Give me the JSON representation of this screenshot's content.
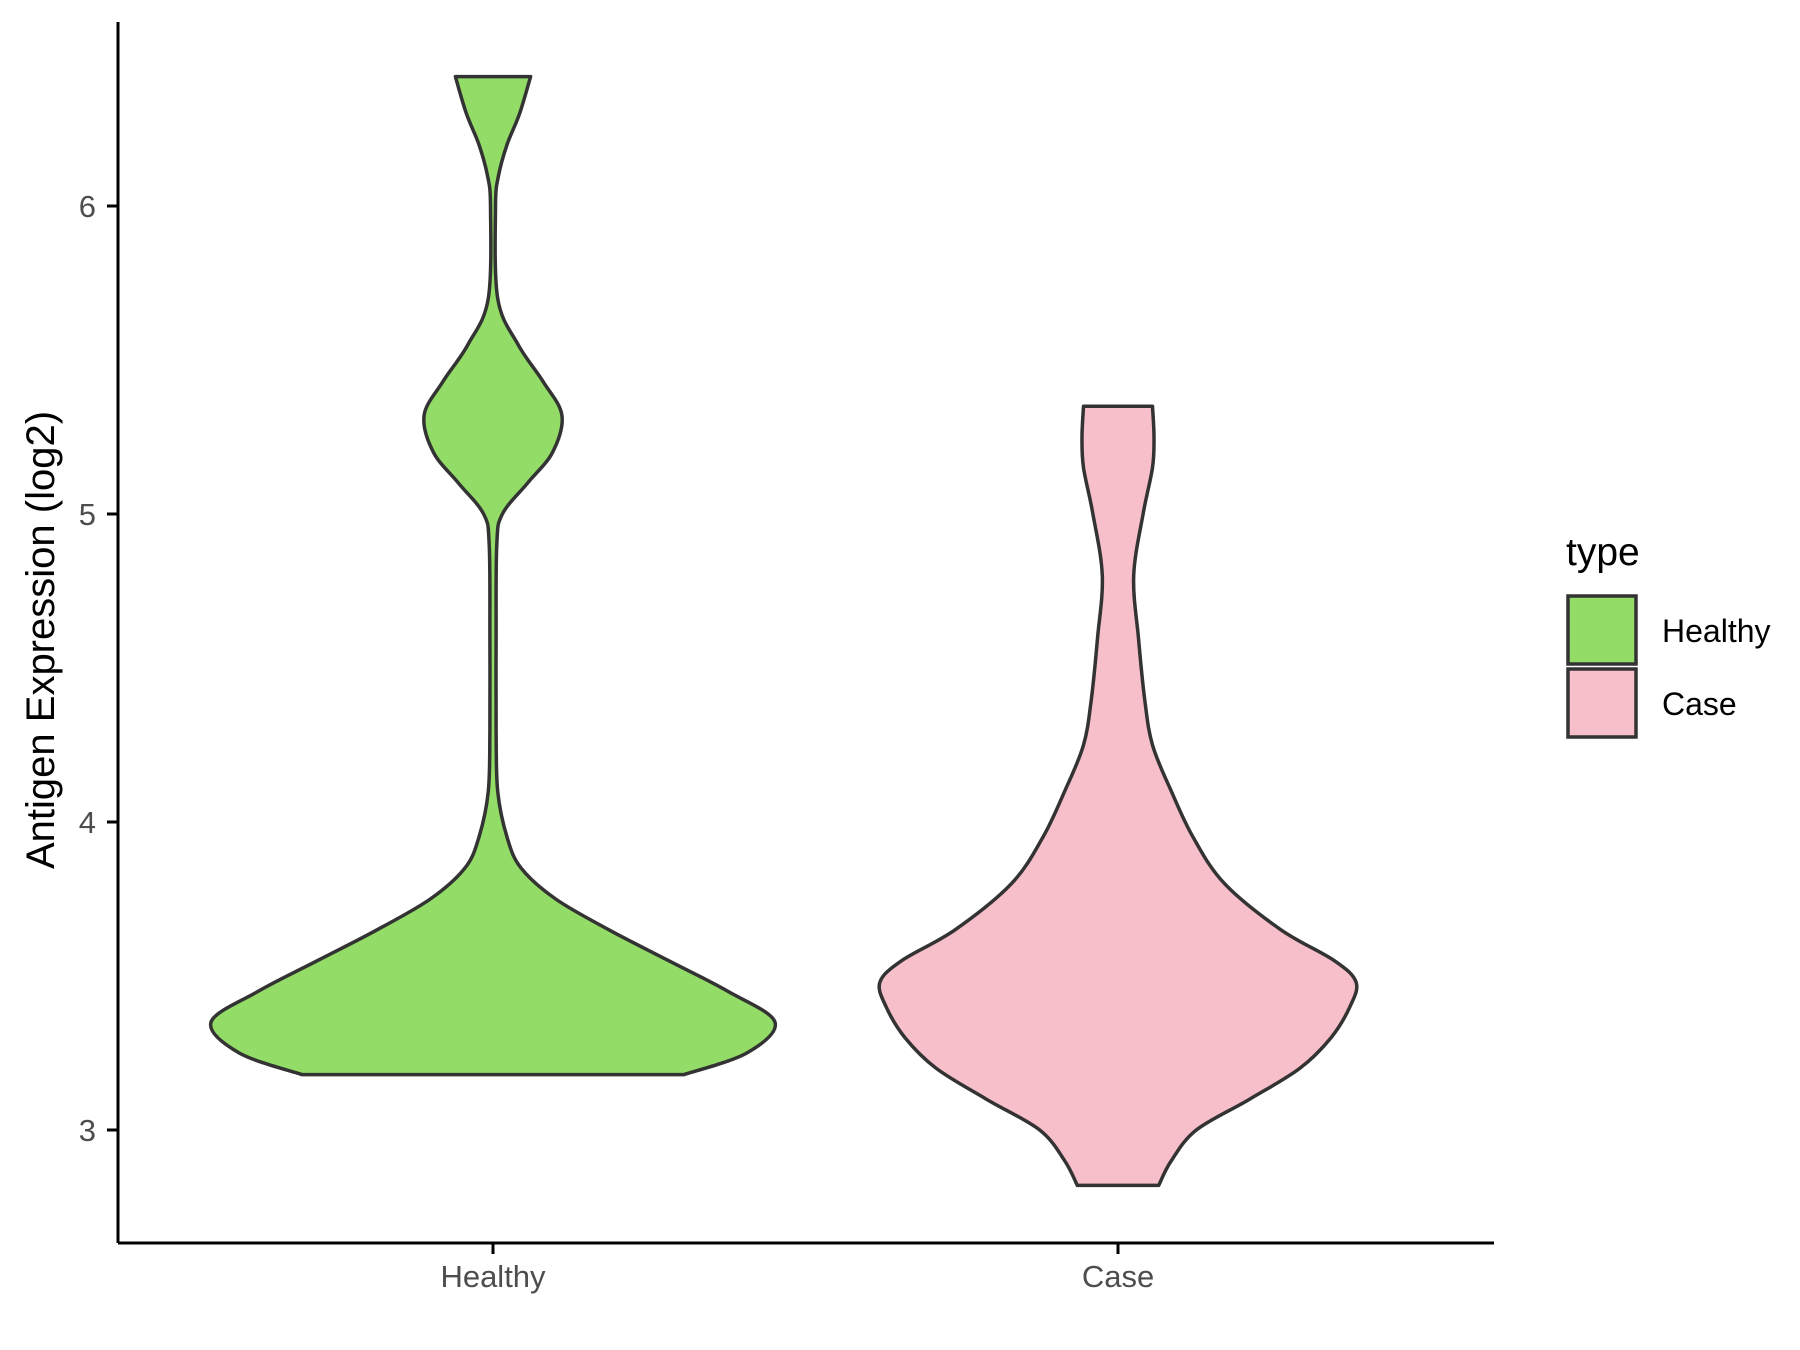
{
  "chart_data": {
    "type": "violin",
    "title": "",
    "xlabel": "",
    "ylabel": "Antigen Expression (log2)",
    "categories": [
      "Healthy",
      "Case"
    ],
    "ylim": [
      2.65,
      6.6
    ],
    "yticks": [
      3,
      4,
      5,
      6
    ],
    "grid": false,
    "legend": {
      "title": "type",
      "position": "right",
      "entries": [
        {
          "label": "Healthy",
          "color": "#92DC67"
        },
        {
          "label": "Case",
          "color": "#F7BFCA"
        }
      ]
    },
    "series": [
      {
        "name": "Healthy",
        "color": "#92DC67",
        "range": [
          3.18,
          6.42
        ],
        "density": [
          [
            3.18,
            0.61
          ],
          [
            3.25,
            0.81
          ],
          [
            3.35,
            0.9
          ],
          [
            3.45,
            0.75
          ],
          [
            3.55,
            0.56
          ],
          [
            3.65,
            0.37
          ],
          [
            3.75,
            0.2
          ],
          [
            3.85,
            0.09
          ],
          [
            3.95,
            0.045
          ],
          [
            4.1,
            0.015
          ],
          [
            4.3,
            0.01
          ],
          [
            4.6,
            0.01
          ],
          [
            4.9,
            0.012
          ],
          [
            5.0,
            0.03
          ],
          [
            5.1,
            0.11
          ],
          [
            5.2,
            0.19
          ],
          [
            5.32,
            0.22
          ],
          [
            5.43,
            0.16
          ],
          [
            5.55,
            0.08
          ],
          [
            5.7,
            0.015
          ],
          [
            6.0,
            0.008
          ],
          [
            6.1,
            0.018
          ],
          [
            6.2,
            0.045
          ],
          [
            6.3,
            0.085
          ],
          [
            6.42,
            0.12
          ]
        ]
      },
      {
        "name": "Case",
        "color": "#F7BFCA",
        "range": [
          2.82,
          5.35
        ],
        "density": [
          [
            2.82,
            0.13
          ],
          [
            2.9,
            0.17
          ],
          [
            3.0,
            0.25
          ],
          [
            3.1,
            0.42
          ],
          [
            3.2,
            0.58
          ],
          [
            3.3,
            0.68
          ],
          [
            3.4,
            0.74
          ],
          [
            3.48,
            0.76
          ],
          [
            3.55,
            0.69
          ],
          [
            3.65,
            0.52
          ],
          [
            3.8,
            0.34
          ],
          [
            3.95,
            0.24
          ],
          [
            4.1,
            0.17
          ],
          [
            4.25,
            0.11
          ],
          [
            4.4,
            0.085
          ],
          [
            4.6,
            0.065
          ],
          [
            4.8,
            0.05
          ],
          [
            5.0,
            0.08
          ],
          [
            5.15,
            0.11
          ],
          [
            5.25,
            0.115
          ],
          [
            5.35,
            0.11
          ]
        ]
      }
    ]
  }
}
